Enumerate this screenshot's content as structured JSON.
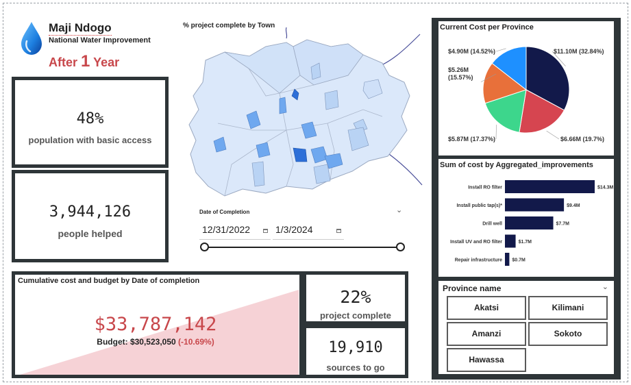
{
  "header": {
    "title": "Maji Ndogo",
    "subtitle": "National Water Improvement",
    "after_prefix": "After",
    "after_number": "1",
    "after_suffix": "Year",
    "logo_icon": "water-drop-icon"
  },
  "kpis": {
    "basic_access": {
      "value": "48%",
      "label": "population with basic access"
    },
    "people_helped": {
      "value": "3,944,126",
      "label": "people helped"
    },
    "project_complete": {
      "value": "22%",
      "label": "project complete"
    },
    "sources_to_go": {
      "value": "19,910",
      "label": "sources to go"
    }
  },
  "map": {
    "title": "% project complete by Town",
    "colors": {
      "border": "#9aa8c0",
      "region_fill": "#dbe8fa",
      "town_light": "#b9d3f4",
      "town_mid": "#6fa8ef",
      "town_dark": "#2d6fd8",
      "river": "#4a4f9a"
    }
  },
  "date_slicer": {
    "title": "Date of Completion",
    "start": "12/31/2022",
    "end": "1/3/2024"
  },
  "cumulative": {
    "title": "Cumulative cost and budget by Date of completion",
    "value": "$33,787,142",
    "budget_label": "Budget:",
    "budget_value": "$30,523,050",
    "budget_delta": "(-10.69%)",
    "fill_color": "#f6d2d6"
  },
  "chart_data": [
    {
      "type": "pie",
      "title": "Current Cost per Province",
      "slices": [
        {
          "label": "$11.10M (32.84%)",
          "value": 11.1,
          "percent": 32.84,
          "color": "#12194a"
        },
        {
          "label": "$6.66M (19.7%)",
          "value": 6.66,
          "percent": 19.7,
          "color": "#d64550"
        },
        {
          "label": "$5.87M (17.37%)",
          "value": 5.87,
          "percent": 17.37,
          "color": "#3dd68c"
        },
        {
          "label": "$5.26M (15.57%)",
          "value": 5.26,
          "percent": 15.57,
          "color": "#e8703a"
        },
        {
          "label": "$4.90M (14.52%)",
          "value": 4.9,
          "percent": 14.52,
          "color": "#1e90ff"
        }
      ]
    },
    {
      "type": "bar",
      "orientation": "horizontal",
      "title": "Sum of cost by Aggregated_improvements",
      "categories": [
        "Install RO filter",
        "Install public tap(s)*",
        "Drill well",
        "Install UV and RO filter",
        "Repair infrastructure"
      ],
      "values": [
        14.3,
        9.4,
        7.7,
        1.7,
        0.7
      ],
      "value_labels": [
        "$14.3M",
        "$9.4M",
        "$7.7M",
        "$1.7M",
        "$0.7M"
      ],
      "xlim": [
        0,
        14.3
      ],
      "color": "#12194a"
    }
  ],
  "province_slicer": {
    "title": "Province name",
    "options": [
      "Akatsi",
      "Kilimani",
      "Amanzi",
      "Sokoto",
      "Hawassa"
    ]
  }
}
